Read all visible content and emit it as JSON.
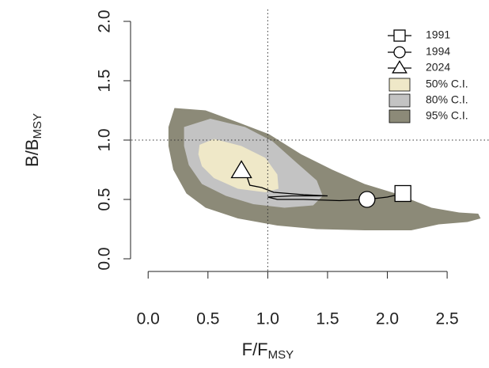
{
  "chart_data": {
    "type": "line",
    "xlabel": {
      "main": "F/F",
      "sub": "MSY"
    },
    "ylabel": {
      "main": "B/B",
      "sub": "MSY"
    },
    "xlim": [
      -0.2,
      2.85
    ],
    "ylim": [
      -0.1,
      2.1
    ],
    "xticks": [
      {
        "value": 0,
        "label": "0.0"
      },
      {
        "value": 0.5,
        "label": "0.5"
      },
      {
        "value": 1,
        "label": "1.0"
      },
      {
        "value": 1.5,
        "label": "1.5"
      },
      {
        "value": 2,
        "label": "2.0"
      },
      {
        "value": 2.5,
        "label": "2.5"
      }
    ],
    "yticks": [
      {
        "value": 0,
        "label": "0.0"
      },
      {
        "value": 0.5,
        "label": "0.5"
      },
      {
        "value": 1,
        "label": "1.0"
      },
      {
        "value": 1.5,
        "label": "1.5"
      },
      {
        "value": 2,
        "label": "2.0"
      }
    ],
    "reference_lines": {
      "x": 1,
      "y": 1
    },
    "trajectory": {
      "color": "#000000",
      "x": [
        2.13,
        2.0,
        1.83,
        1.6,
        1.3,
        1.08,
        1.0,
        1.2,
        1.5,
        1.3,
        1.05,
        0.95,
        0.85,
        0.83,
        0.78
      ],
      "y": [
        0.55,
        0.52,
        0.5,
        0.49,
        0.5,
        0.5,
        0.52,
        0.53,
        0.53,
        0.54,
        0.56,
        0.6,
        0.62,
        0.68,
        0.74
      ]
    },
    "markers": [
      {
        "name": "1991",
        "shape": "square",
        "x": 2.13,
        "y": 0.55
      },
      {
        "name": "1994",
        "shape": "circle",
        "x": 1.83,
        "y": 0.5
      },
      {
        "name": "2024",
        "shape": "triangle",
        "x": 0.78,
        "y": 0.74
      }
    ],
    "regions": [
      {
        "name": "50% C.I.",
        "color": "#efe8c8",
        "x": [
          0.43,
          0.55,
          0.78,
          0.98,
          1.08,
          1.09,
          0.98,
          0.75,
          0.55,
          0.45,
          0.42
        ],
        "y": [
          0.96,
          1.01,
          0.95,
          0.85,
          0.71,
          0.59,
          0.56,
          0.59,
          0.68,
          0.78,
          0.88
        ]
      },
      {
        "name": "80% C.I.",
        "color": "#c3c3c3",
        "x": [
          0.3,
          0.52,
          0.81,
          1.04,
          1.24,
          1.41,
          1.46,
          1.38,
          1.14,
          0.88,
          0.65,
          0.45,
          0.34,
          0.3
        ],
        "y": [
          1.11,
          1.18,
          1.11,
          0.99,
          0.81,
          0.66,
          0.53,
          0.45,
          0.43,
          0.46,
          0.53,
          0.63,
          0.79,
          0.95
        ]
      },
      {
        "name": "95% C.I.",
        "color": "#8c8a78",
        "x": [
          0.17,
          0.22,
          0.48,
          0.75,
          1.01,
          1.28,
          1.54,
          1.81,
          2.07,
          2.37,
          2.6,
          2.76,
          2.78,
          2.67,
          2.43,
          2.2,
          1.81,
          1.41,
          1.08,
          0.75,
          0.48,
          0.32,
          0.21,
          0.17
        ],
        "y": [
          1.11,
          1.27,
          1.25,
          1.15,
          1.05,
          0.88,
          0.75,
          0.63,
          0.55,
          0.43,
          0.39,
          0.38,
          0.34,
          0.31,
          0.29,
          0.24,
          0.24,
          0.25,
          0.28,
          0.34,
          0.43,
          0.55,
          0.75,
          0.95
        ]
      }
    ]
  }
}
